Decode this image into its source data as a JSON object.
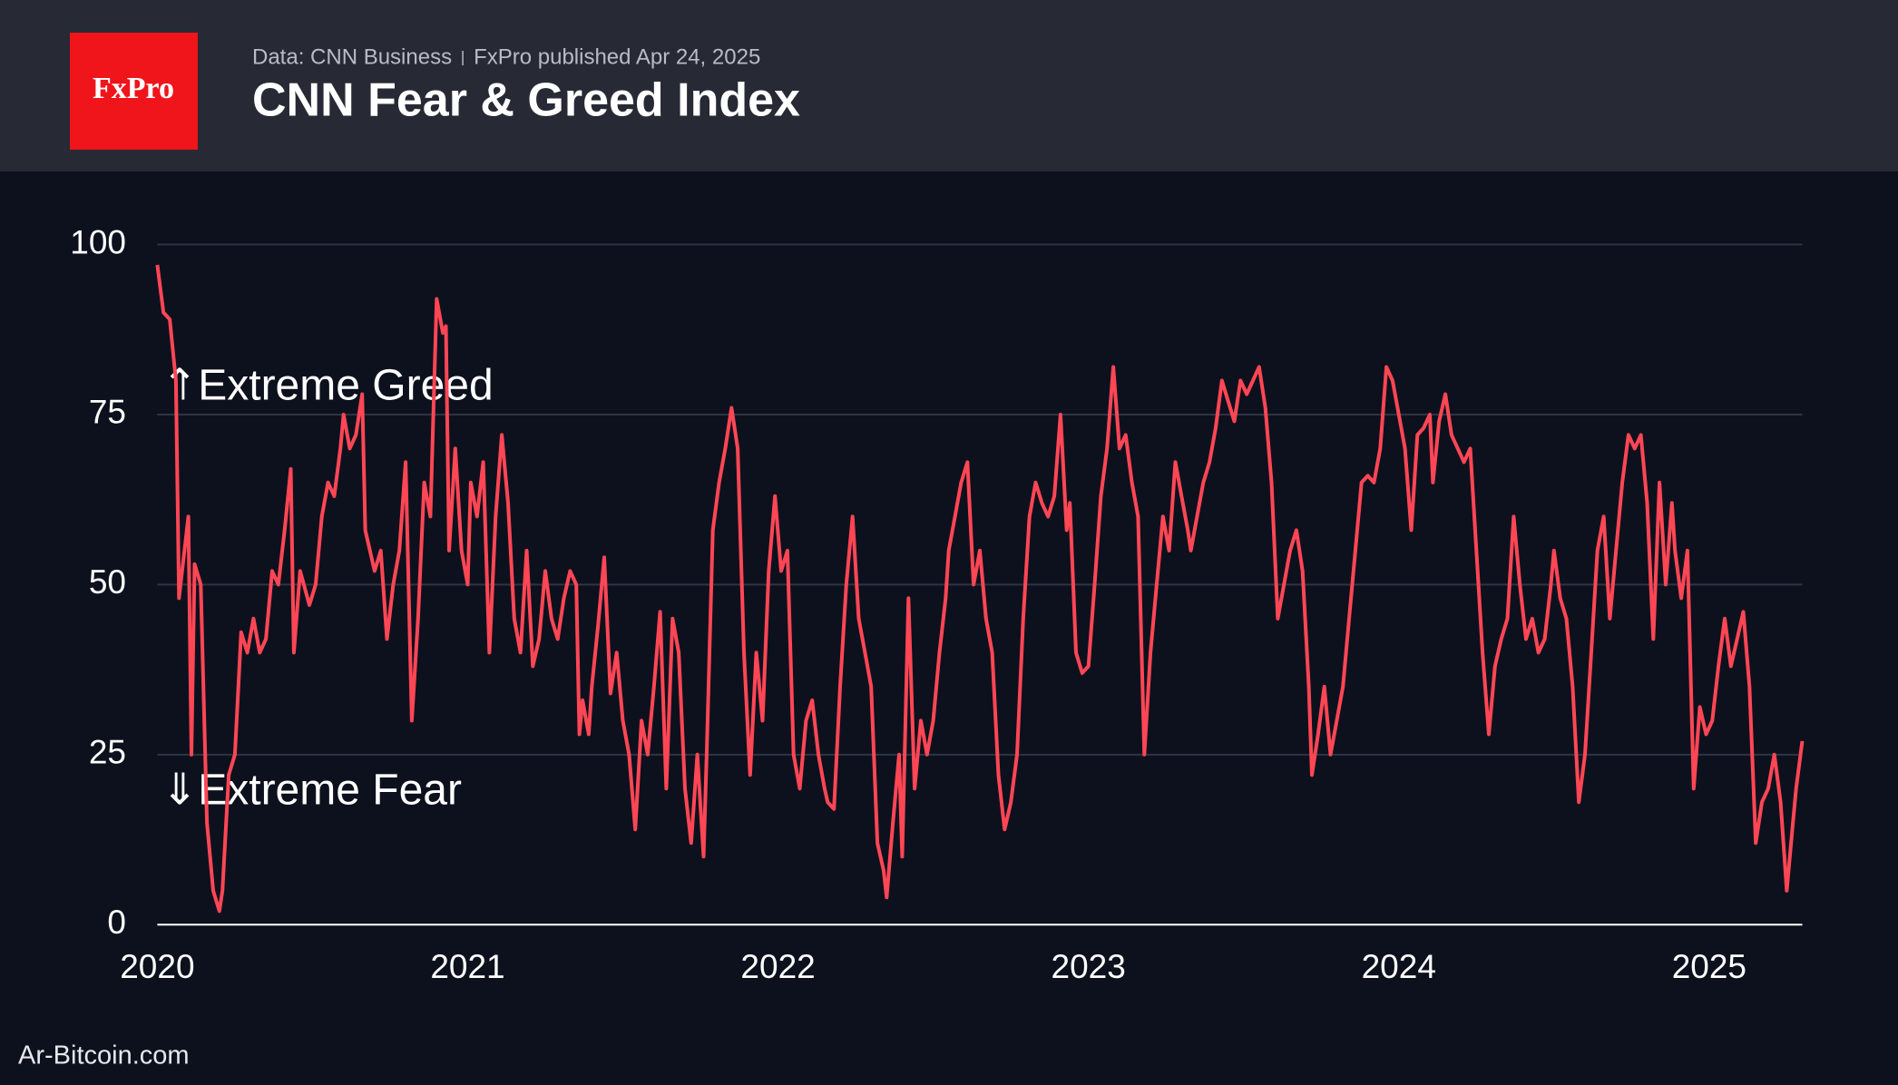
{
  "logo": "FxPro",
  "source": "Data: CNN Business",
  "published": "FxPro published Apr 24, 2025",
  "footer": "Ar-Bitcoin.com",
  "chart_data": {
    "type": "line",
    "title": "CNN Fear & Greed Index",
    "annotations": [
      "⇑Extreme Greed",
      "⇓Extreme Fear"
    ],
    "xlim": [
      2020,
      2025.3
    ],
    "xticks": [
      2020,
      2021,
      2022,
      2023,
      2024,
      2025
    ],
    "ylim": [
      0,
      100
    ],
    "yticks": [
      0,
      25,
      50,
      75,
      100
    ],
    "grid": true,
    "x": [
      2020.0,
      2020.02,
      2020.04,
      2020.06,
      2020.07,
      2020.09,
      2020.1,
      2020.11,
      2020.12,
      2020.14,
      2020.16,
      2020.18,
      2020.2,
      2020.21,
      2020.23,
      2020.25,
      2020.27,
      2020.29,
      2020.31,
      2020.33,
      2020.35,
      2020.37,
      2020.39,
      2020.41,
      2020.43,
      2020.44,
      2020.46,
      2020.49,
      2020.51,
      2020.53,
      2020.55,
      2020.57,
      2020.59,
      2020.6,
      2020.62,
      2020.64,
      2020.66,
      2020.67,
      2020.7,
      2020.72,
      2020.74,
      2020.76,
      2020.78,
      2020.8,
      2020.82,
      2020.84,
      2020.86,
      2020.88,
      2020.9,
      2020.92,
      2020.93,
      2020.94,
      2020.96,
      2020.98,
      2021.0,
      2021.01,
      2021.03,
      2021.05,
      2021.07,
      2021.09,
      2021.11,
      2021.13,
      2021.15,
      2021.17,
      2021.19,
      2021.21,
      2021.23,
      2021.25,
      2021.27,
      2021.29,
      2021.31,
      2021.33,
      2021.35,
      2021.36,
      2021.37,
      2021.39,
      2021.4,
      2021.42,
      2021.44,
      2021.46,
      2021.48,
      2021.5,
      2021.52,
      2021.54,
      2021.56,
      2021.58,
      2021.6,
      2021.62,
      2021.64,
      2021.66,
      2021.68,
      2021.7,
      2021.72,
      2021.74,
      2021.76,
      2021.77,
      2021.79,
      2021.81,
      2021.83,
      2021.85,
      2021.87,
      2021.89,
      2021.91,
      2021.93,
      2021.95,
      2021.97,
      2021.99,
      2022.01,
      2022.03,
      2022.05,
      2022.07,
      2022.09,
      2022.11,
      2022.13,
      2022.15,
      2022.16,
      2022.18,
      2022.2,
      2022.22,
      2022.24,
      2022.26,
      2022.28,
      2022.3,
      2022.32,
      2022.34,
      2022.35,
      2022.37,
      2022.39,
      2022.4,
      2022.42,
      2022.44,
      2022.46,
      2022.48,
      2022.5,
      2022.52,
      2022.54,
      2022.55,
      2022.57,
      2022.59,
      2022.61,
      2022.63,
      2022.65,
      2022.67,
      2022.69,
      2022.71,
      2022.73,
      2022.75,
      2022.77,
      2022.79,
      2022.81,
      2022.83,
      2022.85,
      2022.87,
      2022.89,
      2022.91,
      2022.93,
      2022.94,
      2022.96,
      2022.98,
      2023.0,
      2023.02,
      2023.04,
      2023.06,
      2023.08,
      2023.1,
      2023.12,
      2023.14,
      2023.16,
      2023.18,
      2023.2,
      2023.22,
      2023.24,
      2023.26,
      2023.28,
      2023.3,
      2023.32,
      2023.33,
      2023.35,
      2023.37,
      2023.39,
      2023.41,
      2023.43,
      2023.45,
      2023.47,
      2023.49,
      2023.51,
      2023.53,
      2023.55,
      2023.57,
      2023.59,
      2023.61,
      2023.63,
      2023.65,
      2023.67,
      2023.69,
      2023.71,
      2023.72,
      2023.74,
      2023.76,
      2023.78,
      2023.8,
      2023.82,
      2023.84,
      2023.86,
      2023.88,
      2023.9,
      2023.92,
      2023.94,
      2023.96,
      2023.98,
      2024.0,
      2024.02,
      2024.04,
      2024.06,
      2024.08,
      2024.1,
      2024.11,
      2024.13,
      2024.15,
      2024.17,
      2024.19,
      2024.21,
      2024.23,
      2024.25,
      2024.27,
      2024.29,
      2024.31,
      2024.33,
      2024.35,
      2024.37,
      2024.39,
      2024.41,
      2024.43,
      2024.45,
      2024.47,
      2024.49,
      2024.5,
      2024.52,
      2024.54,
      2024.56,
      2024.58,
      2024.6,
      2024.62,
      2024.64,
      2024.66,
      2024.68,
      2024.7,
      2024.72,
      2024.74,
      2024.76,
      2024.78,
      2024.8,
      2024.82,
      2024.84,
      2024.86,
      2024.88,
      2024.89,
      2024.91,
      2024.93,
      2024.95,
      2024.97,
      2024.99,
      2025.01,
      2025.03,
      2025.05,
      2025.07,
      2025.09,
      2025.11,
      2025.13,
      2025.15,
      2025.17,
      2025.19,
      2025.21,
      2025.23,
      2025.25,
      2025.27,
      2025.28,
      2025.3
    ],
    "series": [
      {
        "color": "#ff4655",
        "values": [
          97,
          90,
          89,
          80,
          48,
          56,
          60,
          25,
          53,
          50,
          15,
          5,
          2,
          5,
          22,
          25,
          43,
          40,
          45,
          40,
          42,
          52,
          50,
          58,
          67,
          40,
          52,
          47,
          50,
          60,
          65,
          63,
          70,
          75,
          70,
          72,
          78,
          58,
          52,
          55,
          42,
          50,
          55,
          68,
          30,
          45,
          65,
          60,
          92,
          87,
          88,
          55,
          70,
          55,
          50,
          65,
          60,
          68,
          40,
          60,
          72,
          62,
          45,
          40,
          55,
          38,
          42,
          52,
          45,
          42,
          48,
          52,
          50,
          28,
          33,
          28,
          35,
          44,
          54,
          34,
          40,
          30,
          25,
          14,
          30,
          25,
          35,
          46,
          20,
          45,
          40,
          20,
          12,
          25,
          10,
          25,
          58,
          65,
          70,
          76,
          70,
          40,
          22,
          40,
          30,
          52,
          63,
          52,
          55,
          25,
          20,
          30,
          33,
          25,
          20,
          18,
          17,
          35,
          50,
          60,
          45,
          40,
          35,
          12,
          8,
          4,
          15,
          25,
          10,
          48,
          20,
          30,
          25,
          30,
          40,
          48,
          55,
          60,
          65,
          68,
          50,
          55,
          45,
          40,
          22,
          14,
          18,
          25,
          45,
          60,
          65,
          62,
          60,
          63,
          75,
          58,
          62,
          40,
          37,
          38,
          50,
          63,
          70,
          82,
          70,
          72,
          65,
          60,
          25,
          40,
          50,
          60,
          55,
          68,
          63,
          58,
          55,
          60,
          65,
          68,
          73,
          80,
          77,
          74,
          80,
          78,
          80,
          82,
          76,
          65,
          45,
          50,
          55,
          58,
          52,
          35,
          22,
          28,
          35,
          25,
          30,
          35,
          45,
          55,
          65,
          66,
          65,
          70,
          82,
          80,
          75,
          70,
          58,
          72,
          73,
          75,
          65,
          74,
          78,
          72,
          70,
          68,
          70,
          55,
          40,
          28,
          38,
          42,
          45,
          60,
          50,
          42,
          45,
          40,
          42,
          50,
          55,
          48,
          45,
          35,
          18,
          25,
          40,
          55,
          60,
          45,
          55,
          65,
          72,
          70,
          72,
          62,
          42,
          65,
          50,
          62,
          55,
          48,
          55,
          20,
          32,
          28,
          30,
          38,
          45,
          38,
          42,
          46,
          35,
          12,
          18,
          20,
          25,
          18,
          5,
          15,
          20,
          27
        ]
      }
    ]
  }
}
